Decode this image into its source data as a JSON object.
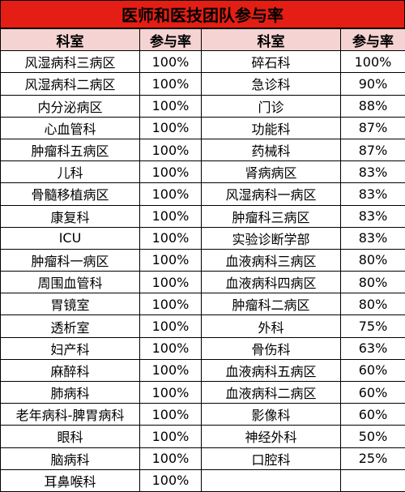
{
  "title": "医师和医技团队参与率",
  "headers": [
    "科室",
    "参与率",
    "科室",
    "参与率"
  ],
  "rows": [
    [
      "风湿病科三病区",
      "100%",
      "碎石科",
      "100%"
    ],
    [
      "风湿病科二病区",
      "100%",
      "急诊科",
      "90%"
    ],
    [
      "内分泌病区",
      "100%",
      "门诊",
      "88%"
    ],
    [
      "心血管科",
      "100%",
      "功能科",
      "87%"
    ],
    [
      "肿瘤科五病区",
      "100%",
      "药械科",
      "87%"
    ],
    [
      "儿科",
      "100%",
      "肾病病区",
      "83%"
    ],
    [
      "骨髓移植病区",
      "100%",
      "风湿病科一病区",
      "83%"
    ],
    [
      "康复科",
      "100%",
      "肿瘤科三病区",
      "83%"
    ],
    [
      "ICU",
      "100%",
      "实验诊断学部",
      "83%"
    ],
    [
      "肿瘤科一病区",
      "100%",
      "血液病科三病区",
      "80%"
    ],
    [
      "周围血管科",
      "100%",
      "血液病科四病区",
      "80%"
    ],
    [
      "胃镜室",
      "100%",
      "肿瘤科二病区",
      "80%"
    ],
    [
      "透析室",
      "100%",
      "外科",
      "75%"
    ],
    [
      "妇产科",
      "100%",
      "骨伤科",
      "63%"
    ],
    [
      "麻醉科",
      "100%",
      "血液病科五病区",
      "60%"
    ],
    [
      "肺病科",
      "100%",
      "血液病科二病区",
      "60%"
    ],
    [
      "老年病科-脾胃病科",
      "100%",
      "影像科",
      "60%"
    ],
    [
      "眼科",
      "100%",
      "神经外科",
      "50%"
    ],
    [
      "脑病科",
      "100%",
      "口腔科",
      "25%"
    ],
    [
      "耳鼻喉科",
      "100%",
      "",
      ""
    ]
  ]
}
